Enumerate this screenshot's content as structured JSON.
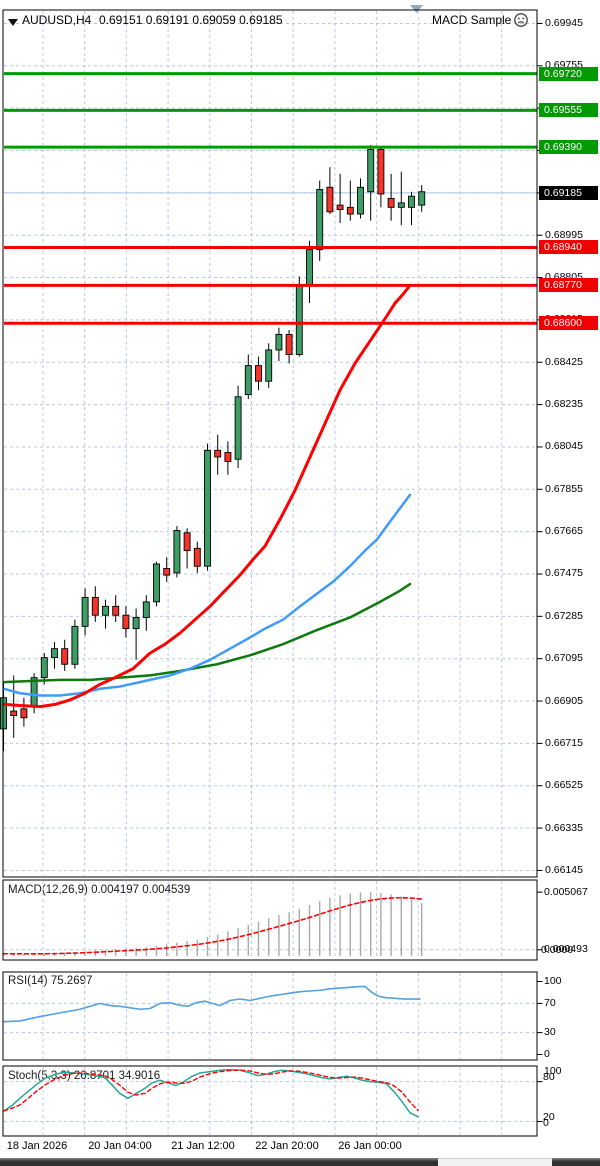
{
  "header": {
    "symbol_period": "AUDUSD,H4",
    "ohlc": "0.69151 0.69191 0.69059 0.69185",
    "ea_name": "MACD Sample"
  },
  "colors": {
    "grid": "#b7c9e0",
    "bull": "#3c9e66",
    "bear": "#f2342b",
    "candle_outline": "#000000",
    "ma_fast_red": "#ff0000",
    "ma_mid_blue": "#3e9bfa",
    "ma_slow_green": "#0e7a0e",
    "resistance_green": "#009b00",
    "support_red": "#f00000",
    "price_line": "#a9c7e7",
    "price_badge_bg": "#000000",
    "macd_hist": "#a9a9a9",
    "macd_signal": "#ff0000",
    "rsi_line": "#55a0e0",
    "stoch_k": "#26a69a",
    "stoch_d": "#ff0000",
    "marker": "#8fa6c4"
  },
  "price_axis": {
    "plain_labels": [
      "0.69945",
      "0.69755",
      "0.69565",
      "0.69375",
      "0.69185",
      "0.68995",
      "0.68805",
      "0.68615",
      "0.68425",
      "0.68235",
      "0.68045",
      "0.67855",
      "0.67665",
      "0.67475",
      "0.67285",
      "0.67095",
      "0.66905",
      "0.66715",
      "0.66525",
      "0.66335",
      "0.66145"
    ],
    "badges": [
      {
        "text": "0.69720",
        "value": 0.6972,
        "type": "green"
      },
      {
        "text": "0.69555",
        "value": 0.69555,
        "type": "green"
      },
      {
        "text": "0.69390",
        "value": 0.6939,
        "type": "green"
      },
      {
        "text": "0.69185",
        "value": 0.69185,
        "type": "black"
      },
      {
        "text": "0.68940",
        "value": 0.6894,
        "type": "red"
      },
      {
        "text": "0.68770",
        "value": 0.6877,
        "type": "red"
      },
      {
        "text": "0.68600",
        "value": 0.686,
        "type": "red"
      }
    ]
  },
  "panels": {
    "macd": {
      "label": "MACD(12,26,9) 0.004197 0.004539",
      "axis_top": "0.005067",
      "axis_bottom_overlap": [
        "0.000493",
        "0.0000"
      ]
    },
    "rsi": {
      "label": "RSI(14) 75.2697",
      "axis": [
        "100",
        "70",
        "30",
        "0"
      ],
      "levels": [
        70,
        30
      ]
    },
    "stoch": {
      "label": "Stoch(5,3,3) 26.8701 34.9016",
      "axis_overlap_top": [
        "100",
        "80"
      ],
      "axis_overlap_bottom": [
        "20",
        "0"
      ],
      "levels": [
        80,
        20
      ]
    }
  },
  "time_axis": {
    "labels": [
      "18 Jan 2026",
      "20 Jan 04:00",
      "21 Jan 12:00",
      "22 Jan 20:00",
      "26 Jan 00:00"
    ],
    "centers": [
      37,
      120,
      203,
      287,
      370
    ]
  },
  "chart_data": {
    "type": "candlestick",
    "symbol": "AUDUSD",
    "period": "H4",
    "current_price": 0.69185,
    "y_axis_top": 0.69945,
    "y_axis_bottom": 0.66145,
    "y_step": 0.0019,
    "sr_levels_green": [
      0.6972,
      0.69555,
      0.6939
    ],
    "sr_levels_red": [
      0.6894,
      0.6877,
      0.686
    ],
    "candles_ohlc": [
      [
        0.6678,
        0.6699,
        0.6668,
        0.6692
      ],
      [
        0.6686,
        0.6702,
        0.6674,
        0.6684
      ],
      [
        0.6687,
        0.6692,
        0.6679,
        0.6683
      ],
      [
        0.6688,
        0.6703,
        0.6685,
        0.6701
      ],
      [
        0.6701,
        0.6712,
        0.6698,
        0.671
      ],
      [
        0.671,
        0.6717,
        0.6705,
        0.6714
      ],
      [
        0.6714,
        0.6718,
        0.6704,
        0.6707
      ],
      [
        0.6707,
        0.6727,
        0.6705,
        0.6724
      ],
      [
        0.6724,
        0.6741,
        0.672,
        0.6737
      ],
      [
        0.6737,
        0.6742,
        0.6726,
        0.6729
      ],
      [
        0.6729,
        0.6736,
        0.6723,
        0.6733
      ],
      [
        0.6733,
        0.6738,
        0.6726,
        0.6729
      ],
      [
        0.6729,
        0.6733,
        0.6719,
        0.6723
      ],
      [
        0.6723,
        0.6732,
        0.6709,
        0.6728
      ],
      [
        0.6728,
        0.6738,
        0.6722,
        0.6735
      ],
      [
        0.6735,
        0.6753,
        0.6733,
        0.6752
      ],
      [
        0.675,
        0.6755,
        0.6744,
        0.6747
      ],
      [
        0.6748,
        0.6769,
        0.6746,
        0.6767
      ],
      [
        0.6766,
        0.6768,
        0.675,
        0.6758
      ],
      [
        0.6759,
        0.6762,
        0.6748,
        0.6751
      ],
      [
        0.6751,
        0.6806,
        0.6749,
        0.6803
      ],
      [
        0.6803,
        0.681,
        0.6792,
        0.68
      ],
      [
        0.6802,
        0.6807,
        0.6792,
        0.6798
      ],
      [
        0.6799,
        0.6832,
        0.6795,
        0.6827
      ],
      [
        0.6828,
        0.6846,
        0.6826,
        0.6841
      ],
      [
        0.6841,
        0.6845,
        0.683,
        0.6834
      ],
      [
        0.6834,
        0.6851,
        0.6831,
        0.6848
      ],
      [
        0.6848,
        0.6858,
        0.6843,
        0.6855
      ],
      [
        0.6855,
        0.6857,
        0.6842,
        0.6846
      ],
      [
        0.6846,
        0.6881,
        0.6845,
        0.6877
      ],
      [
        0.6877,
        0.6897,
        0.6869,
        0.6893
      ],
      [
        0.6893,
        0.6924,
        0.6888,
        0.692
      ],
      [
        0.6921,
        0.693,
        0.6909,
        0.691
      ],
      [
        0.6913,
        0.6927,
        0.6905,
        0.6911
      ],
      [
        0.6912,
        0.6924,
        0.6906,
        0.6909
      ],
      [
        0.6909,
        0.6925,
        0.6907,
        0.6921
      ],
      [
        0.6919,
        0.694,
        0.6906,
        0.6938
      ],
      [
        0.6938,
        0.6939,
        0.6912,
        0.6918
      ],
      [
        0.6916,
        0.6927,
        0.6906,
        0.6912
      ],
      [
        0.6912,
        0.6928,
        0.6904,
        0.6914
      ],
      [
        0.6912,
        0.6919,
        0.6904,
        0.6917
      ],
      [
        0.6913,
        0.6922,
        0.691,
        0.6919
      ]
    ],
    "ma_fast_red": [
      [
        4,
        0.6689
      ],
      [
        20,
        0.66885
      ],
      [
        40,
        0.6688
      ],
      [
        55,
        0.6689
      ],
      [
        70,
        0.6691
      ],
      [
        85,
        0.6694
      ],
      [
        100,
        0.6698
      ],
      [
        115,
        0.6701
      ],
      [
        133,
        0.6705
      ],
      [
        150,
        0.6712
      ],
      [
        165,
        0.6716
      ],
      [
        180,
        0.6721
      ],
      [
        195,
        0.6727
      ],
      [
        210,
        0.6733
      ],
      [
        225,
        0.674
      ],
      [
        240,
        0.6747
      ],
      [
        253,
        0.6754
      ],
      [
        265,
        0.676
      ],
      [
        280,
        0.6772
      ],
      [
        295,
        0.6785
      ],
      [
        310,
        0.68
      ],
      [
        325,
        0.6815
      ],
      [
        340,
        0.683
      ],
      [
        355,
        0.6842
      ],
      [
        370,
        0.6852
      ],
      [
        385,
        0.6862
      ],
      [
        395,
        0.6869
      ],
      [
        403,
        0.6873
      ],
      [
        410,
        0.6877
      ]
    ],
    "ma_mid_blue": [
      [
        4,
        0.6696
      ],
      [
        20,
        0.6694
      ],
      [
        40,
        0.6693
      ],
      [
        60,
        0.6693
      ],
      [
        80,
        0.6694
      ],
      [
        100,
        0.6696
      ],
      [
        120,
        0.6697
      ],
      [
        140,
        0.6699
      ],
      [
        150,
        0.67
      ],
      [
        170,
        0.6702
      ],
      [
        190,
        0.6705
      ],
      [
        210,
        0.6709
      ],
      [
        230,
        0.6714
      ],
      [
        250,
        0.6719
      ],
      [
        265,
        0.6723
      ],
      [
        283,
        0.6727
      ],
      [
        300,
        0.6733
      ],
      [
        315,
        0.6738
      ],
      [
        333,
        0.6744
      ],
      [
        350,
        0.6751
      ],
      [
        365,
        0.6758
      ],
      [
        377,
        0.6763
      ],
      [
        390,
        0.6771
      ],
      [
        400,
        0.6777
      ],
      [
        410,
        0.6783
      ]
    ],
    "ma_slow_green": [
      [
        4,
        0.6699
      ],
      [
        30,
        0.66995
      ],
      [
        60,
        0.67
      ],
      [
        90,
        0.67
      ],
      [
        120,
        0.6701
      ],
      [
        150,
        0.6702
      ],
      [
        180,
        0.6704
      ],
      [
        217,
        0.6707
      ],
      [
        250,
        0.6711
      ],
      [
        283,
        0.6716
      ],
      [
        315,
        0.6722
      ],
      [
        350,
        0.6728
      ],
      [
        380,
        0.6735
      ],
      [
        400,
        0.674
      ],
      [
        410,
        0.6743
      ]
    ],
    "macd_values": [
      0.00018,
      0.00016,
      0.00015,
      0.00017,
      0.0002,
      0.00024,
      0.00028,
      0.00032,
      0.00038,
      0.00044,
      0.0005,
      0.00056,
      0.0006,
      0.00064,
      0.0007,
      0.0008,
      0.00092,
      0.00105,
      0.00118,
      0.0013,
      0.0015,
      0.00172,
      0.00195,
      0.0022,
      0.00248,
      0.00275,
      0.003,
      0.00325,
      0.00348,
      0.00375,
      0.00405,
      0.00435,
      0.00462,
      0.00482,
      0.00496,
      0.00505,
      0.00507,
      0.005,
      0.00488,
      0.00472,
      0.00448,
      0.0042
    ],
    "macd_current": 0.004197,
    "macd_signal_current": 0.004539,
    "rsi_current": 75.2697,
    "rsi_points": [
      [
        4,
        45
      ],
      [
        20,
        46
      ],
      [
        40,
        52
      ],
      [
        60,
        57
      ],
      [
        80,
        62
      ],
      [
        90,
        66
      ],
      [
        100,
        70
      ],
      [
        110,
        67
      ],
      [
        120,
        66
      ],
      [
        130,
        64
      ],
      [
        140,
        62
      ],
      [
        150,
        63
      ],
      [
        160,
        70
      ],
      [
        170,
        71
      ],
      [
        178,
        68
      ],
      [
        188,
        66
      ],
      [
        196,
        71
      ],
      [
        205,
        73
      ],
      [
        212,
        70
      ],
      [
        220,
        67
      ],
      [
        230,
        74
      ],
      [
        240,
        76
      ],
      [
        250,
        74
      ],
      [
        260,
        77
      ],
      [
        270,
        80
      ],
      [
        280,
        82
      ],
      [
        290,
        84
      ],
      [
        300,
        86
      ],
      [
        310,
        87
      ],
      [
        320,
        88
      ],
      [
        330,
        90
      ],
      [
        340,
        91
      ],
      [
        350,
        92
      ],
      [
        360,
        93
      ],
      [
        365,
        93
      ],
      [
        372,
        85
      ],
      [
        378,
        80
      ],
      [
        385,
        78
      ],
      [
        395,
        77
      ],
      [
        405,
        76
      ],
      [
        412,
        76
      ],
      [
        420,
        76
      ]
    ],
    "stoch_k_current": 26.8701,
    "stoch_d_current": 34.9016,
    "stoch_k_points": [
      [
        4,
        36
      ],
      [
        12,
        44
      ],
      [
        20,
        55
      ],
      [
        28,
        65
      ],
      [
        36,
        75
      ],
      [
        45,
        85
      ],
      [
        55,
        91
      ],
      [
        65,
        94
      ],
      [
        75,
        93
      ],
      [
        85,
        91
      ],
      [
        95,
        89
      ],
      [
        105,
        86
      ],
      [
        112,
        75
      ],
      [
        120,
        62
      ],
      [
        128,
        55
      ],
      [
        136,
        62
      ],
      [
        145,
        70
      ],
      [
        152,
        78
      ],
      [
        160,
        82
      ],
      [
        168,
        78
      ],
      [
        176,
        74
      ],
      [
        184,
        80
      ],
      [
        192,
        88
      ],
      [
        200,
        93
      ],
      [
        210,
        95
      ],
      [
        220,
        97
      ],
      [
        230,
        98
      ],
      [
        240,
        97
      ],
      [
        250,
        93
      ],
      [
        258,
        89
      ],
      [
        266,
        91
      ],
      [
        274,
        95
      ],
      [
        282,
        97
      ],
      [
        290,
        96
      ],
      [
        298,
        94
      ],
      [
        306,
        92
      ],
      [
        314,
        89
      ],
      [
        322,
        86
      ],
      [
        330,
        84
      ],
      [
        338,
        86
      ],
      [
        346,
        88
      ],
      [
        354,
        86
      ],
      [
        362,
        82
      ],
      [
        370,
        80
      ],
      [
        378,
        79
      ],
      [
        386,
        77
      ],
      [
        394,
        65
      ],
      [
        402,
        50
      ],
      [
        410,
        33
      ],
      [
        418,
        27
      ]
    ]
  }
}
